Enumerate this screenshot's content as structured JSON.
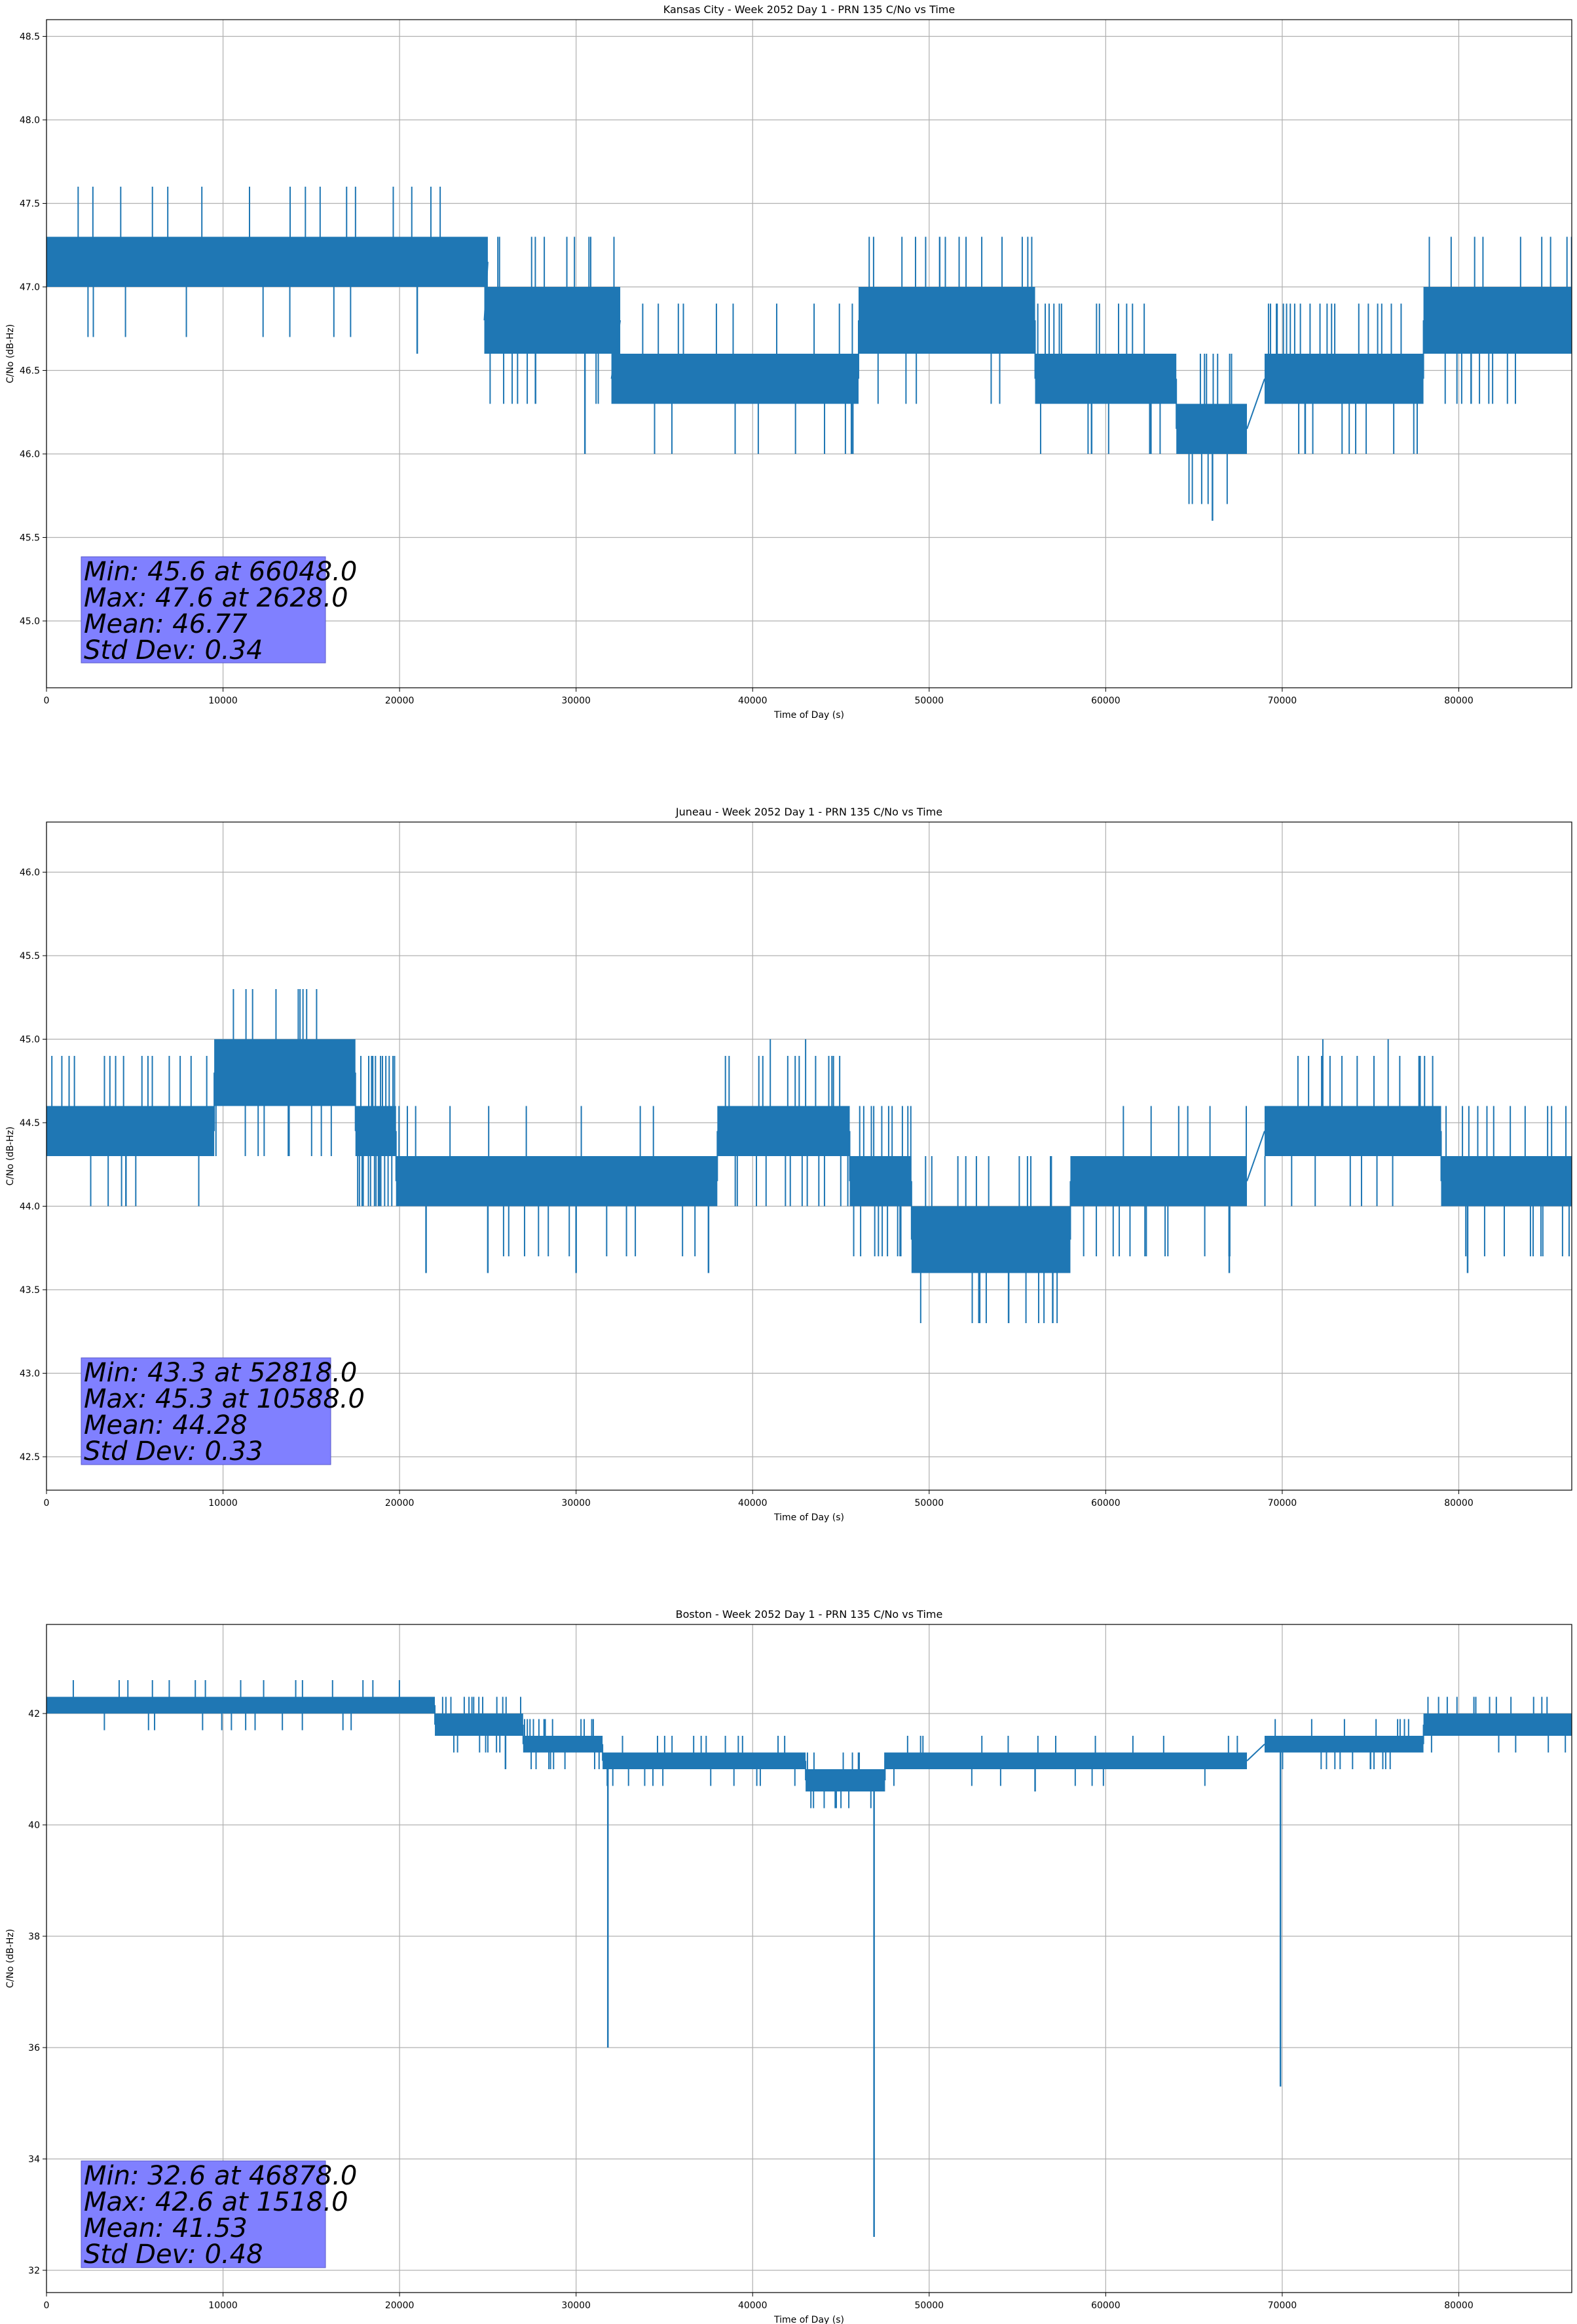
{
  "figure": {
    "line_color": "#1f77b4",
    "grid_color": "#b0b0b0",
    "stats_box_color": "#8080ff"
  },
  "chart_data": [
    {
      "type": "line",
      "title": "Kansas City - Week 2052 Day 1 - PRN 135 C/No vs Time",
      "xlabel": "Time of Day (s)",
      "ylabel": "C/No (dB-Hz)",
      "xlim": [
        0,
        86400
      ],
      "ylim": [
        44.6,
        48.6
      ],
      "xticks": [
        "0",
        "10000",
        "20000",
        "30000",
        "40000",
        "50000",
        "60000",
        "70000",
        "80000"
      ],
      "yticks": [
        "45.0",
        "45.5",
        "46.0",
        "46.5",
        "47.0",
        "47.5",
        "48.0",
        "48.5"
      ],
      "grid": true,
      "series": [
        {
          "segments": [
            {
              "x": [
                0,
                25000
              ],
              "low": 47.0,
              "high": 47.3
            },
            {
              "x": [
                24800,
                32500
              ],
              "low": 46.6,
              "high": 47.0
            },
            {
              "x": [
                32000,
                46000
              ],
              "low": 46.3,
              "high": 46.6
            },
            {
              "x": [
                46000,
                56000
              ],
              "low": 46.6,
              "high": 47.0
            },
            {
              "x": [
                56000,
                64000
              ],
              "low": 46.3,
              "high": 46.6
            },
            {
              "x": [
                64000,
                68000
              ],
              "low": 46.0,
              "high": 46.3
            },
            {
              "x": [
                69000,
                78000
              ],
              "low": 46.3,
              "high": 46.6
            },
            {
              "x": [
                78000,
                86400
              ],
              "low": 46.6,
              "high": 47.0
            }
          ],
          "spikes_up": [
            [
              2628,
              47.6
            ],
            [
              6000,
              47.6
            ],
            [
              8800,
              47.6
            ],
            [
              11500,
              47.6
            ],
            [
              13800,
              47.6
            ],
            [
              15500,
              47.6
            ],
            [
              17000,
              47.6
            ],
            [
              22300,
              47.6
            ],
            [
              49800,
              47.3
            ],
            [
              50600,
              47.3
            ],
            [
              83500,
              47.3
            ],
            [
              85200,
              47.3
            ]
          ],
          "spikes_down": [
            [
              21000,
              46.6
            ],
            [
              27700,
              46.3
            ],
            [
              30500,
              46.0
            ],
            [
              45600,
              46.0
            ],
            [
              59200,
              46.0
            ],
            [
              62500,
              46.0
            ],
            [
              66048,
              45.6
            ],
            [
              71300,
              46.0
            ],
            [
              80700,
              46.3
            ]
          ]
        }
      ],
      "stats": [
        "Min: 45.6 at 66048.0",
        "Max: 47.6 at 2628.0",
        "Mean: 46.77",
        "Std Dev: 0.34"
      ]
    },
    {
      "type": "line",
      "title": "Juneau - Week 2052 Day 1 - PRN 135 C/No vs Time",
      "xlabel": "Time of Day (s)",
      "ylabel": "C/No (dB-Hz)",
      "xlim": [
        0,
        86400
      ],
      "ylim": [
        42.3,
        46.3
      ],
      "xticks": [
        "0",
        "10000",
        "20000",
        "30000",
        "40000",
        "50000",
        "60000",
        "70000",
        "80000"
      ],
      "yticks": [
        "42.5",
        "43.0",
        "43.5",
        "44.0",
        "44.5",
        "45.0",
        "45.5",
        "46.0"
      ],
      "grid": true,
      "series": [
        {
          "segments": [
            {
              "x": [
                0,
                9500
              ],
              "low": 44.3,
              "high": 44.6
            },
            {
              "x": [
                9500,
                17500
              ],
              "low": 44.6,
              "high": 45.0
            },
            {
              "x": [
                17500,
                19800
              ],
              "low": 44.3,
              "high": 44.6
            },
            {
              "x": [
                19800,
                38000
              ],
              "low": 44.0,
              "high": 44.3
            },
            {
              "x": [
                38000,
                45500
              ],
              "low": 44.3,
              "high": 44.6
            },
            {
              "x": [
                45500,
                49000
              ],
              "low": 44.0,
              "high": 44.3
            },
            {
              "x": [
                49000,
                58000
              ],
              "low": 43.6,
              "high": 44.0
            },
            {
              "x": [
                58000,
                68000
              ],
              "low": 44.0,
              "high": 44.3
            },
            {
              "x": [
                69000,
                79000
              ],
              "low": 44.3,
              "high": 44.6
            },
            {
              "x": [
                79000,
                86400
              ],
              "low": 44.0,
              "high": 44.3
            }
          ],
          "spikes_up": [
            [
              10588,
              45.3
            ],
            [
              11300,
              45.3
            ],
            [
              13000,
              45.3
            ],
            [
              15300,
              45.3
            ],
            [
              41000,
              45.0
            ],
            [
              43000,
              45.0
            ],
            [
              72300,
              45.0
            ],
            [
              76000,
              45.0
            ]
          ],
          "spikes_down": [
            [
              4500,
              44.0
            ],
            [
              21500,
              43.6
            ],
            [
              25000,
              43.6
            ],
            [
              30000,
              43.6
            ],
            [
              37500,
              43.6
            ],
            [
              52818,
              43.3
            ],
            [
              54500,
              43.3
            ],
            [
              57000,
              43.3
            ],
            [
              67000,
              43.6
            ],
            [
              80500,
              43.6
            ]
          ]
        }
      ],
      "stats": [
        "Min: 43.3 at 52818.0",
        "Max: 45.3 at 10588.0",
        "Mean: 44.28",
        "Std Dev: 0.33"
      ]
    },
    {
      "type": "line",
      "title": "Boston - Week 2052 Day 1 - PRN 135 C/No vs Time",
      "xlabel": "Time of Day (s)",
      "ylabel": "C/No (dB-Hz)",
      "xlim": [
        0,
        86400
      ],
      "ylim": [
        31.6,
        43.6
      ],
      "xticks": [
        "0",
        "10000",
        "20000",
        "30000",
        "40000",
        "50000",
        "60000",
        "70000",
        "80000"
      ],
      "yticks": [
        "32",
        "34",
        "36",
        "38",
        "40",
        "42"
      ],
      "grid": true,
      "series": [
        {
          "segments": [
            {
              "x": [
                0,
                22000
              ],
              "low": 42.0,
              "high": 42.3
            },
            {
              "x": [
                22000,
                27000
              ],
              "low": 41.6,
              "high": 42.0
            },
            {
              "x": [
                27000,
                31500
              ],
              "low": 41.3,
              "high": 41.6
            },
            {
              "x": [
                31500,
                43000
              ],
              "low": 41.0,
              "high": 41.3
            },
            {
              "x": [
                43000,
                47500
              ],
              "low": 40.6,
              "high": 41.0
            },
            {
              "x": [
                47500,
                68000
              ],
              "low": 41.0,
              "high": 41.3
            },
            {
              "x": [
                69000,
                78000
              ],
              "low": 41.3,
              "high": 41.6
            },
            {
              "x": [
                78000,
                86400
              ],
              "low": 41.6,
              "high": 42.0
            }
          ],
          "spikes_up": [
            [
              1518,
              42.6
            ],
            [
              6000,
              42.6
            ],
            [
              9000,
              42.6
            ],
            [
              11000,
              42.6
            ],
            [
              14500,
              42.6
            ],
            [
              85000,
              42.3
            ]
          ],
          "spikes_down": [
            [
              31800,
              36.0
            ],
            [
              46878,
              32.6
            ],
            [
              69900,
              35.3
            ],
            [
              26000,
              41.0
            ],
            [
              56000,
              40.6
            ],
            [
              75000,
              41.0
            ]
          ]
        }
      ],
      "stats": [
        "Min: 32.6 at 46878.0",
        "Max: 42.6 at 1518.0",
        "Mean: 41.53",
        "Std Dev: 0.48"
      ]
    }
  ]
}
